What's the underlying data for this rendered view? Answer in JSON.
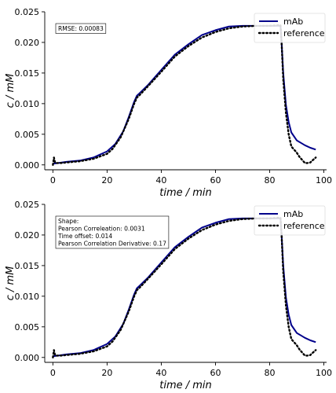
{
  "chart_data": [
    {
      "type": "line",
      "xlabel": "time / min",
      "ylabel": "c / mM",
      "xlim": [
        -3,
        101
      ],
      "ylim": [
        -0.0008,
        0.025
      ],
      "xticks": [
        0,
        20,
        40,
        60,
        80,
        100
      ],
      "yticks": [
        0.0,
        0.005,
        0.01,
        0.015,
        0.02,
        0.025
      ],
      "ytick_labels": [
        "0.000",
        "0.005",
        "0.010",
        "0.015",
        "0.020",
        "0.025"
      ],
      "legend": "top-right",
      "annotation": [
        "RMSE: 0.00083"
      ],
      "series": [
        {
          "name": "mAb",
          "color": "#00008b",
          "style": "solid",
          "x": [
            0,
            2,
            5,
            10,
            15,
            20,
            23,
            26,
            28,
            30,
            31,
            32,
            35,
            40,
            45,
            50,
            55,
            60,
            65,
            70,
            75,
            80,
            83,
            84,
            84.4,
            85,
            86,
            87,
            88,
            90,
            93,
            95,
            97
          ],
          "y": [
            0.0002,
            0.0003,
            0.0005,
            0.0007,
            0.0012,
            0.0022,
            0.0034,
            0.0055,
            0.0078,
            0.0103,
            0.0113,
            0.0117,
            0.013,
            0.0155,
            0.018,
            0.0197,
            0.0212,
            0.022,
            0.0226,
            0.0227,
            0.0227,
            0.0227,
            0.0227,
            0.0227,
            0.02,
            0.015,
            0.0098,
            0.007,
            0.0053,
            0.004,
            0.0032,
            0.0028,
            0.0025
          ]
        },
        {
          "name": "reference",
          "color": "#000000",
          "style": "dotted",
          "x": [
            0,
            0.4,
            0.8,
            1.5,
            3,
            5,
            10,
            15,
            20,
            22,
            25,
            28,
            30,
            31,
            32,
            35,
            40,
            45,
            50,
            55,
            60,
            65,
            70,
            75,
            80,
            83,
            84,
            84.4,
            85,
            86,
            87,
            88,
            90,
            91,
            92,
            93,
            94,
            95,
            96,
            97
          ],
          "y": [
            0.0,
            0.0012,
            0.0004,
            0.0003,
            0.0003,
            0.0004,
            0.0006,
            0.001,
            0.0018,
            0.0026,
            0.0045,
            0.0075,
            0.01,
            0.011,
            0.0114,
            0.0128,
            0.0152,
            0.0177,
            0.0194,
            0.0208,
            0.0217,
            0.0223,
            0.0226,
            0.0227,
            0.0227,
            0.0228,
            0.0228,
            0.02,
            0.014,
            0.0085,
            0.005,
            0.003,
            0.002,
            0.0013,
            0.0008,
            0.0003,
            0.0003,
            0.0004,
            0.0008,
            0.0012
          ]
        }
      ]
    },
    {
      "type": "line",
      "xlabel": "time / min",
      "ylabel": "c / mM",
      "xlim": [
        -3,
        101
      ],
      "ylim": [
        -0.0008,
        0.025
      ],
      "xticks": [
        0,
        20,
        40,
        60,
        80,
        100
      ],
      "yticks": [
        0.0,
        0.005,
        0.01,
        0.015,
        0.02,
        0.025
      ],
      "ytick_labels": [
        "0.000",
        "0.005",
        "0.010",
        "0.015",
        "0.020",
        "0.025"
      ],
      "legend": "top-right",
      "annotation": [
        "Shape:",
        "Pearson Correleation: 0.0031",
        "Time offset: 0.014",
        "Pearson Correlation Derivative: 0.17"
      ],
      "series": [
        {
          "name": "mAb",
          "color": "#00008b",
          "style": "solid",
          "x": [
            0,
            2,
            5,
            10,
            15,
            20,
            23,
            26,
            28,
            30,
            31,
            32,
            35,
            40,
            45,
            50,
            55,
            60,
            65,
            70,
            75,
            80,
            83,
            84,
            84.4,
            85,
            86,
            87,
            88,
            90,
            93,
            95,
            97
          ],
          "y": [
            0.0002,
            0.0003,
            0.0005,
            0.0007,
            0.0012,
            0.0022,
            0.0034,
            0.0055,
            0.0078,
            0.0103,
            0.0113,
            0.0117,
            0.013,
            0.0155,
            0.018,
            0.0197,
            0.0212,
            0.022,
            0.0226,
            0.0227,
            0.0227,
            0.0227,
            0.0227,
            0.0227,
            0.02,
            0.015,
            0.0098,
            0.007,
            0.0053,
            0.004,
            0.0032,
            0.0028,
            0.0025
          ]
        },
        {
          "name": "reference",
          "color": "#000000",
          "style": "dotted",
          "x": [
            0,
            0.4,
            0.8,
            1.5,
            3,
            5,
            10,
            15,
            20,
            22,
            25,
            28,
            30,
            31,
            32,
            35,
            40,
            45,
            50,
            55,
            60,
            65,
            70,
            75,
            80,
            83,
            84,
            84.4,
            85,
            86,
            87,
            88,
            90,
            91,
            92,
            93,
            94,
            95,
            96,
            97
          ],
          "y": [
            0.0,
            0.0012,
            0.0004,
            0.0003,
            0.0003,
            0.0004,
            0.0006,
            0.001,
            0.0018,
            0.0026,
            0.0045,
            0.0075,
            0.01,
            0.011,
            0.0114,
            0.0128,
            0.0152,
            0.0177,
            0.0194,
            0.0208,
            0.0217,
            0.0223,
            0.0226,
            0.0227,
            0.0227,
            0.0228,
            0.0228,
            0.02,
            0.014,
            0.0085,
            0.005,
            0.003,
            0.002,
            0.0013,
            0.0008,
            0.0003,
            0.0003,
            0.0004,
            0.0008,
            0.0012
          ]
        }
      ]
    }
  ]
}
